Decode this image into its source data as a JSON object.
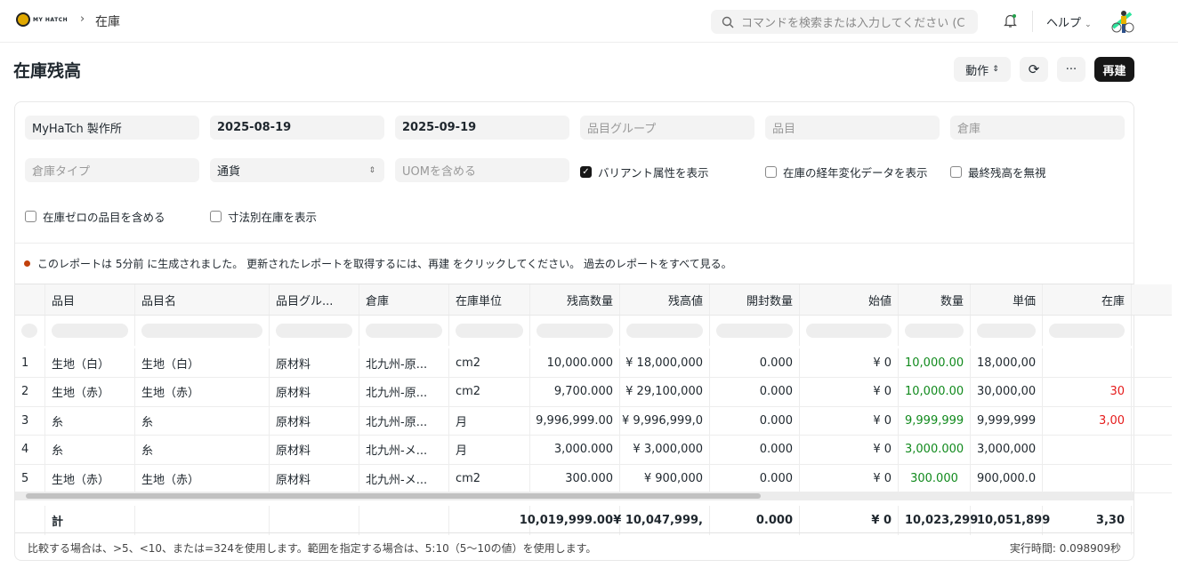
{
  "topbar": {
    "logo_text": "MY HATCH",
    "breadcrumb": "在庫",
    "search_placeholder": "コマンドを検索または入力してください (C",
    "help": "ヘルプ"
  },
  "page": {
    "title": "在庫残高",
    "actions_label": "動作",
    "rebuild_label": "再建",
    "more_label": "···"
  },
  "filters": {
    "company": "MyHaTch 製作所",
    "from_date": "2025-08-19",
    "to_date": "2025-09-19",
    "item_group_ph": "品目グループ",
    "item_ph": "品目",
    "warehouse_ph": "倉庫",
    "warehouse_type_ph": "倉庫タイプ",
    "currency_ph": "通貨",
    "uom_ph": "UOMを含める",
    "checks": [
      {
        "label": "バリアント属性を表示",
        "checked": true
      },
      {
        "label": "在庫の経年変化データを表示",
        "checked": false
      },
      {
        "label": "最終残高を無視",
        "checked": false
      },
      {
        "label": "在庫ゼロの品目を含める",
        "checked": false
      },
      {
        "label": "寸法別在庫を表示",
        "checked": false
      }
    ]
  },
  "notice": "このレポートは 5分前 に生成されました。 更新されたレポートを取得するには、再建 をクリックしてください。 過去のレポートをすべて見る。",
  "table": {
    "columns": [
      "品目",
      "品目名",
      "品目グル...",
      "倉庫",
      "在庫単位",
      "残高数量",
      "残高値",
      "開封数量",
      "始値",
      "数量",
      "単価",
      "在庫"
    ],
    "rows": [
      [
        "1",
        "生地（白）",
        "生地（白）",
        "原材料",
        "北九州-原...",
        "cm2",
        "10,000.000",
        "¥ 18,000,000",
        "0.000",
        "¥ 0",
        "10,000.00",
        "18,000,00",
        ""
      ],
      [
        "2",
        "生地（赤）",
        "生地（赤）",
        "原材料",
        "北九州-原...",
        "cm2",
        "9,700.000",
        "¥ 29,100,000",
        "0.000",
        "¥ 0",
        "10,000.00",
        "30,000,00",
        "30"
      ],
      [
        "3",
        "糸",
        "糸",
        "原材料",
        "北九州-原...",
        "月",
        "9,996,999.00",
        "¥ 9,996,999,0",
        "0.000",
        "¥ 0",
        "9,999,999",
        "9,999,999",
        "3,00"
      ],
      [
        "4",
        "糸",
        "糸",
        "原材料",
        "北九州-メ...",
        "月",
        "3,000.000",
        "¥ 3,000,000",
        "0.000",
        "¥ 0",
        "3,000.000",
        "3,000,000",
        ""
      ],
      [
        "5",
        "生地（赤）",
        "生地（赤）",
        "原材料",
        "北九州-メ...",
        "cm2",
        "300.000",
        "¥ 900,000",
        "0.000",
        "¥ 0",
        "300.000",
        "900,000.0",
        ""
      ]
    ],
    "total": [
      "",
      "計",
      "",
      "",
      "",
      "",
      "10,019,999.00",
      "¥ 10,047,999,",
      "0.000",
      "¥ 0",
      "10,023,299",
      "10,051,899",
      "3,30"
    ]
  },
  "footer": {
    "hint": "比較する場合は、>5、<10、または=324を使用します。範囲を指定する場合は、5:10（5〜10の値）を使用します。",
    "exec_time": "実行時間: 0.098909秒"
  },
  "colors": {
    "accent": "#171717",
    "green": "#118a1d",
    "red": "#e51b1b",
    "notice_dot": "#c2410c"
  }
}
